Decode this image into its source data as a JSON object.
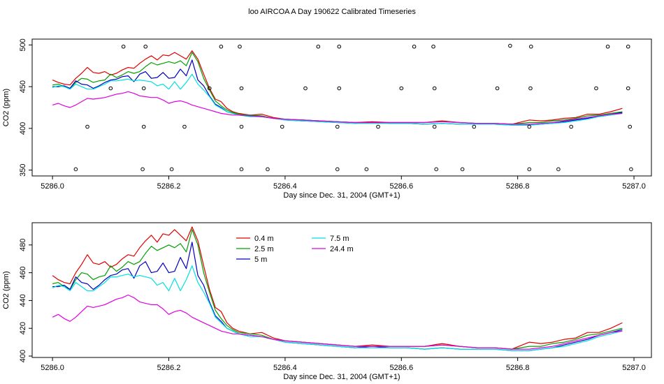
{
  "figure": {
    "title": "loo AIRCOA A  Day 190622  Calibrated Timeseries"
  },
  "chart_data": [
    {
      "type": "line",
      "panel": "top",
      "xlabel": "Day since Dec. 31, 2004 (GMT+1)",
      "ylabel": "CO2 (ppm)",
      "xlim": [
        5285.965,
        5287.03
      ],
      "ylim": [
        343,
        507
      ],
      "x_ticks": [
        5286.0,
        5286.2,
        5286.4,
        5286.6,
        5286.8,
        5287.0
      ],
      "x_tick_labels": [
        "5286.0",
        "5286.2",
        "5286.4",
        "5286.6",
        "5286.8",
        "5287.0"
      ],
      "y_ticks": [
        350,
        400,
        450,
        500
      ],
      "y_tick_labels": [
        "350",
        "400",
        "450",
        "500"
      ],
      "legend": "none",
      "grid": false,
      "series_ref": "shared_series",
      "status_points": {
        "marker": "open-circle",
        "points": [
          {
            "x": 5286.04,
            "y": 351
          },
          {
            "x": 5286.155,
            "y": 351
          },
          {
            "x": 5286.205,
            "y": 351
          },
          {
            "x": 5286.325,
            "y": 351
          },
          {
            "x": 5286.37,
            "y": 351
          },
          {
            "x": 5286.49,
            "y": 351
          },
          {
            "x": 5286.54,
            "y": 351
          },
          {
            "x": 5286.66,
            "y": 351
          },
          {
            "x": 5286.705,
            "y": 351
          },
          {
            "x": 5286.82,
            "y": 351
          },
          {
            "x": 5286.87,
            "y": 351
          },
          {
            "x": 5286.995,
            "y": 351
          },
          {
            "x": 5286.06,
            "y": 402
          },
          {
            "x": 5286.157,
            "y": 402
          },
          {
            "x": 5286.227,
            "y": 402
          },
          {
            "x": 5286.325,
            "y": 402
          },
          {
            "x": 5286.395,
            "y": 402
          },
          {
            "x": 5286.49,
            "y": 402
          },
          {
            "x": 5286.56,
            "y": 402
          },
          {
            "x": 5286.657,
            "y": 402
          },
          {
            "x": 5286.725,
            "y": 402
          },
          {
            "x": 5286.82,
            "y": 402
          },
          {
            "x": 5286.892,
            "y": 402
          },
          {
            "x": 5286.993,
            "y": 402
          },
          {
            "x": 5286.1,
            "y": 448
          },
          {
            "x": 5286.157,
            "y": 448
          },
          {
            "x": 5286.27,
            "y": 448
          },
          {
            "x": 5286.325,
            "y": 448
          },
          {
            "x": 5286.435,
            "y": 448
          },
          {
            "x": 5286.493,
            "y": 448
          },
          {
            "x": 5286.6,
            "y": 448
          },
          {
            "x": 5286.657,
            "y": 448
          },
          {
            "x": 5286.765,
            "y": 448
          },
          {
            "x": 5286.822,
            "y": 448
          },
          {
            "x": 5286.935,
            "y": 448
          },
          {
            "x": 5286.99,
            "y": 448
          },
          {
            "x": 5286.122,
            "y": 498
          },
          {
            "x": 5286.16,
            "y": 498
          },
          {
            "x": 5286.29,
            "y": 498
          },
          {
            "x": 5286.322,
            "y": 498
          },
          {
            "x": 5286.457,
            "y": 498
          },
          {
            "x": 5286.493,
            "y": 498
          },
          {
            "x": 5286.622,
            "y": 498
          },
          {
            "x": 5286.655,
            "y": 498
          },
          {
            "x": 5286.787,
            "y": 499
          },
          {
            "x": 5286.823,
            "y": 498
          },
          {
            "x": 5286.955,
            "y": 498
          },
          {
            "x": 5286.99,
            "y": 498
          }
        ]
      }
    },
    {
      "type": "line",
      "panel": "bottom",
      "xlabel": "Day since Dec. 31, 2004 (GMT+1)",
      "ylabel": "CO2 (ppm)",
      "xlim": [
        5285.965,
        5287.03
      ],
      "ylim": [
        399,
        496
      ],
      "x_ticks": [
        5286.0,
        5286.2,
        5286.4,
        5286.6,
        5286.8,
        5287.0
      ],
      "x_tick_labels": [
        "5286.0",
        "5286.2",
        "5286.4",
        "5286.6",
        "5286.8",
        "5287.0"
      ],
      "y_ticks": [
        400,
        420,
        440,
        460,
        480
      ],
      "y_tick_labels": [
        "400",
        "420",
        "440",
        "460",
        "480"
      ],
      "legend": "top-left inside plot, two columns",
      "grid": false,
      "series_ref": "shared_series"
    }
  ],
  "shared_series": {
    "x": [
      5286.0,
      5286.01,
      5286.02,
      5286.03,
      5286.04,
      5286.05,
      5286.06,
      5286.07,
      5286.08,
      5286.09,
      5286.1,
      5286.11,
      5286.12,
      5286.13,
      5286.14,
      5286.15,
      5286.16,
      5286.17,
      5286.18,
      5286.19,
      5286.2,
      5286.21,
      5286.22,
      5286.23,
      5286.24,
      5286.25,
      5286.26,
      5286.27,
      5286.28,
      5286.29,
      5286.3,
      5286.31,
      5286.32,
      5286.34,
      5286.36,
      5286.38,
      5286.4,
      5286.43,
      5286.46,
      5286.49,
      5286.52,
      5286.55,
      5286.58,
      5286.61,
      5286.64,
      5286.67,
      5286.7,
      5286.73,
      5286.76,
      5286.79,
      5286.82,
      5286.84,
      5286.86,
      5286.88,
      5286.9,
      5286.92,
      5286.94,
      5286.96,
      5286.98
    ],
    "series": [
      {
        "name": "0.4 m",
        "color": "#e00000",
        "values": [
          458,
          455,
          453,
          452,
          460,
          466,
          473,
          467,
          466,
          468,
          464,
          466,
          470,
          473,
          472,
          478,
          483,
          487,
          482,
          488,
          487,
          491,
          487,
          483,
          493,
          483,
          465,
          448,
          435,
          432,
          424,
          420,
          418,
          416,
          417,
          413,
          411,
          410,
          409,
          408,
          407,
          408,
          407,
          407,
          407,
          409,
          407,
          406,
          406,
          405,
          410,
          409,
          410,
          412,
          413,
          417,
          417,
          420,
          424
        ]
      },
      {
        "name": "2.5 m",
        "color": "#00a000",
        "values": [
          452,
          453,
          450,
          448,
          455,
          460,
          459,
          455,
          457,
          458,
          465,
          461,
          464,
          468,
          466,
          468,
          474,
          479,
          476,
          478,
          480,
          478,
          481,
          475,
          491,
          480,
          460,
          446,
          433,
          427,
          422,
          419,
          417,
          416,
          415,
          412,
          411,
          410,
          409,
          408,
          407,
          407,
          407,
          407,
          407,
          408,
          407,
          406,
          406,
          405,
          407,
          407,
          409,
          410,
          412,
          415,
          416,
          418,
          420
        ]
      },
      {
        "name": "5 m",
        "color": "#0000c0",
        "values": [
          450,
          450,
          451,
          448,
          457,
          453,
          452,
          448,
          451,
          455,
          458,
          459,
          462,
          463,
          456,
          465,
          468,
          460,
          461,
          467,
          460,
          461,
          471,
          463,
          482,
          458,
          451,
          439,
          429,
          425,
          420,
          418,
          416,
          415,
          414,
          412,
          410,
          409,
          408,
          407,
          406,
          407,
          406,
          406,
          405,
          406,
          405,
          405,
          405,
          404,
          404,
          405,
          406,
          408,
          410,
          412,
          415,
          417,
          419
        ]
      },
      {
        "name": "7.5 m",
        "color": "#00e0e0",
        "values": [
          449,
          451,
          450,
          447,
          453,
          450,
          447,
          447,
          450,
          453,
          457,
          457,
          458,
          459,
          457,
          458,
          457,
          456,
          451,
          453,
          447,
          456,
          447,
          455,
          465,
          453,
          446,
          438,
          428,
          424,
          420,
          418,
          416,
          414,
          414,
          412,
          410,
          409,
          408,
          407,
          406,
          406,
          406,
          406,
          405,
          406,
          405,
          405,
          405,
          404,
          404,
          405,
          406,
          407,
          409,
          411,
          414,
          416,
          418
        ]
      },
      {
        "name": "24.4 m",
        "color": "#e000e0",
        "values": [
          428,
          430,
          427,
          425,
          428,
          432,
          436,
          435,
          436,
          437,
          439,
          441,
          442,
          444,
          442,
          439,
          438,
          437,
          437,
          434,
          430,
          432,
          433,
          431,
          428,
          426,
          424,
          422,
          420,
          418,
          417,
          416,
          416,
          415,
          414,
          412,
          411,
          410,
          409,
          408,
          407,
          407,
          407,
          407,
          407,
          408,
          407,
          406,
          406,
          405,
          405,
          406,
          407,
          409,
          411,
          413,
          415,
          417,
          418
        ]
      }
    ]
  }
}
